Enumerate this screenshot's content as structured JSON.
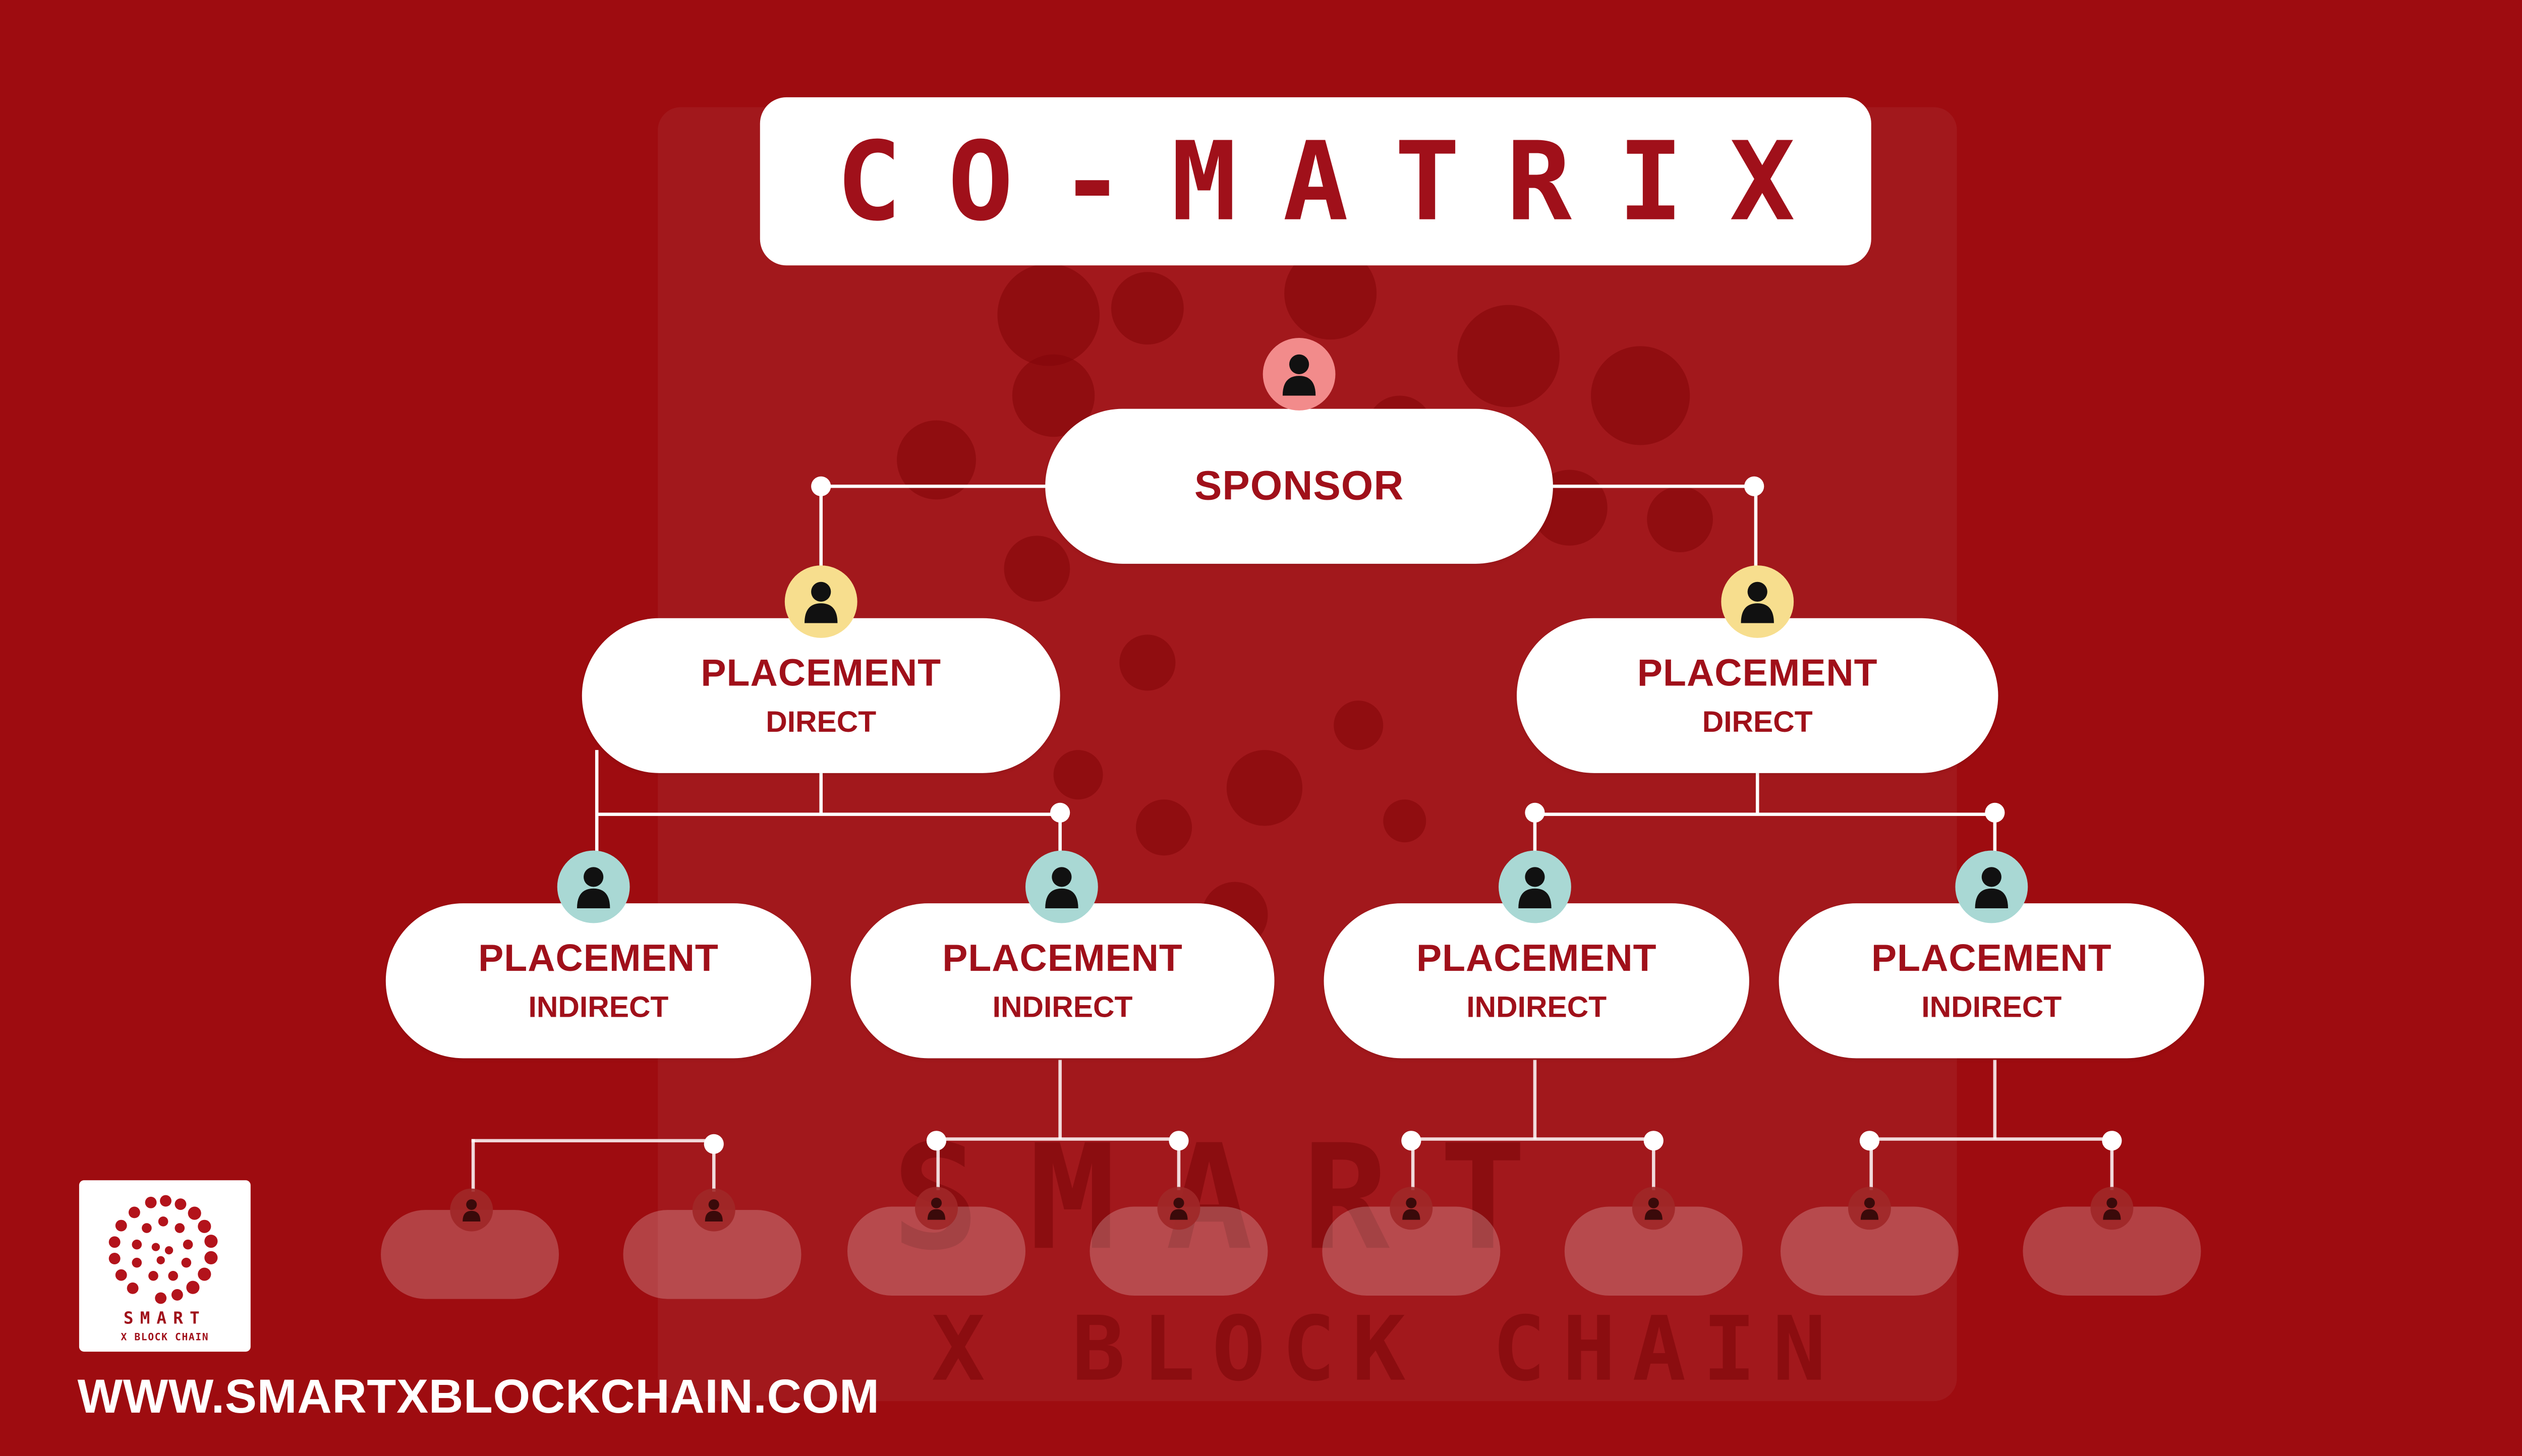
{
  "title": "CO-MATRIX",
  "colors": {
    "background": "#9e0c10",
    "accent_text": "#a0101a",
    "sponsor_avatar": "#f28b8b",
    "direct_avatar": "#f7de8e",
    "indirect_avatar": "#a9d8d4"
  },
  "sponsor": {
    "label": "SPONSOR",
    "icon": "person-icon"
  },
  "direct_nodes": [
    {
      "title": "PLACEMENT",
      "subtitle": "DIRECT"
    },
    {
      "title": "PLACEMENT",
      "subtitle": "DIRECT"
    }
  ],
  "indirect_nodes": [
    {
      "title": "PLACEMENT",
      "subtitle": "INDIRECT"
    },
    {
      "title": "PLACEMENT",
      "subtitle": "INDIRECT"
    },
    {
      "title": "PLACEMENT",
      "subtitle": "INDIRECT"
    },
    {
      "title": "PLACEMENT",
      "subtitle": "INDIRECT"
    }
  ],
  "logo": {
    "word": "SMART",
    "tagline": "X BLOCK CHAIN"
  },
  "watermark": {
    "word": "SMART",
    "tagline": "X BLOCK CHAIN"
  },
  "website": "WWW.SMARTXBLOCKCHAIN.COM"
}
